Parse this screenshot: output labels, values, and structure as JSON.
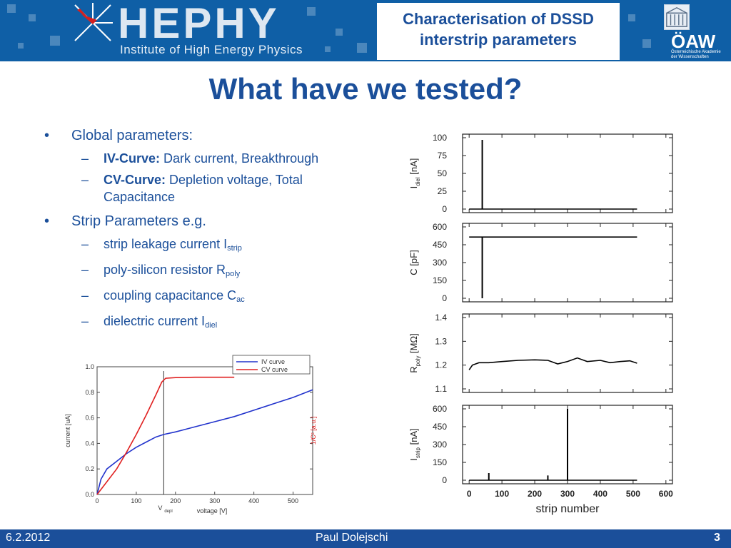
{
  "header": {
    "logo": "HEPHY",
    "logo_subtitle": "Institute of High Energy Physics",
    "title_line1": "Characterisation of DSSD",
    "title_line2": "interstrip parameters",
    "oaw": "ÖAW",
    "oaw_sub": "Österreichische Akademie der Wissenschaften"
  },
  "slide_title": "What have we tested?",
  "bullets": {
    "global": "Global parameters:",
    "iv_label": "IV-Curve:",
    "iv_text": " Dark current, Breakthrough",
    "cv_label": "CV-Curve:",
    "cv_text": " Depletion voltage, Total Capacitance",
    "strip": "Strip Parameters e.g.",
    "leak_text": "strip leakage current I",
    "leak_sub": "strip",
    "poly_text": "poly-silicon resistor R",
    "poly_sub": "poly",
    "cac_text": "coupling capacitance C",
    "cac_sub": "ac",
    "diel_text": "dielectric current I",
    "diel_sub": "diel"
  },
  "footer": {
    "date": "6.2.2012",
    "author": "Paul Dolejschi",
    "page": "3"
  },
  "colors": {
    "title_blue": "#1b4f9a",
    "banner_blue": "#0f5fa6",
    "iv_curve": "#2233cc",
    "cv_curve": "#e02020"
  },
  "chart_data": [
    {
      "type": "line",
      "xlabel": "voltage [V]",
      "ylabel": "current [uA]",
      "y2label": "1/C² [a.u.]",
      "vdepl_label": "V",
      "vdepl_sub": "depl",
      "x_ticks": [
        "0",
        "100",
        "200",
        "300",
        "400",
        "500"
      ],
      "y_ticks": [
        "0.0",
        "0.2",
        "0.4",
        "0.6",
        "0.8",
        "1.0"
      ],
      "xlim": [
        0,
        550
      ],
      "ylim": [
        0,
        1.0
      ],
      "legend": "top-right",
      "vdepl": 170,
      "series": [
        {
          "name": "IV curve",
          "x": [
            0,
            10,
            25,
            50,
            75,
            100,
            125,
            150,
            170,
            200,
            250,
            300,
            350,
            400,
            450,
            500,
            550
          ],
          "y": [
            0.0,
            0.12,
            0.2,
            0.26,
            0.32,
            0.37,
            0.41,
            0.45,
            0.47,
            0.49,
            0.53,
            0.57,
            0.61,
            0.66,
            0.71,
            0.76,
            0.82
          ]
        },
        {
          "name": "CV curve",
          "x": [
            0,
            10,
            25,
            50,
            75,
            100,
            125,
            150,
            165,
            175,
            200,
            250,
            300,
            350
          ],
          "y": [
            0.0,
            0.04,
            0.1,
            0.2,
            0.33,
            0.47,
            0.62,
            0.78,
            0.88,
            0.91,
            0.915,
            0.918,
            0.918,
            0.918
          ]
        }
      ]
    },
    {
      "type": "line",
      "xlabel": "strip number",
      "x_ticks": [
        "0",
        "100",
        "200",
        "300",
        "400",
        "500",
        "600"
      ],
      "xlim": [
        -20,
        620
      ],
      "panels": [
        {
          "ylabel": "I",
          "ylabel_sub": "diel",
          "unit": " [nA]",
          "y_ticks": [
            "100",
            "75",
            "50",
            "25",
            "0"
          ],
          "ylim": [
            0,
            100
          ],
          "baseline": 0,
          "spikes": [
            {
              "x": 40,
              "y": 97
            }
          ]
        },
        {
          "ylabel": "C [pF]",
          "y_ticks": [
            "600",
            "450",
            "300",
            "150",
            "0"
          ],
          "ylim": [
            0,
            600
          ],
          "baseline": 515,
          "spikes": [
            {
              "x": 40,
              "y": 0
            }
          ]
        },
        {
          "ylabel": "R",
          "ylabel_sub": "poly",
          "unit": " [MΩ]",
          "y_ticks": [
            "1.4",
            "1.3",
            "1.2",
            "1.1"
          ],
          "ylim": [
            1.1,
            1.4
          ],
          "x": [
            0,
            10,
            30,
            60,
            100,
            150,
            200,
            240,
            270,
            300,
            330,
            360,
            400,
            430,
            460,
            490,
            512
          ],
          "y": [
            1.18,
            1.2,
            1.21,
            1.21,
            1.215,
            1.22,
            1.222,
            1.22,
            1.205,
            1.215,
            1.23,
            1.215,
            1.22,
            1.21,
            1.215,
            1.218,
            1.208
          ]
        },
        {
          "ylabel": "I",
          "ylabel_sub": "strip",
          "unit": " [nA]",
          "y_ticks": [
            "600",
            "450",
            "300",
            "150",
            "0"
          ],
          "ylim": [
            0,
            600
          ],
          "baseline": 0,
          "spikes": [
            {
              "x": 60,
              "y": 60
            },
            {
              "x": 240,
              "y": 40
            },
            {
              "x": 300,
              "y": 600
            }
          ]
        }
      ]
    }
  ]
}
